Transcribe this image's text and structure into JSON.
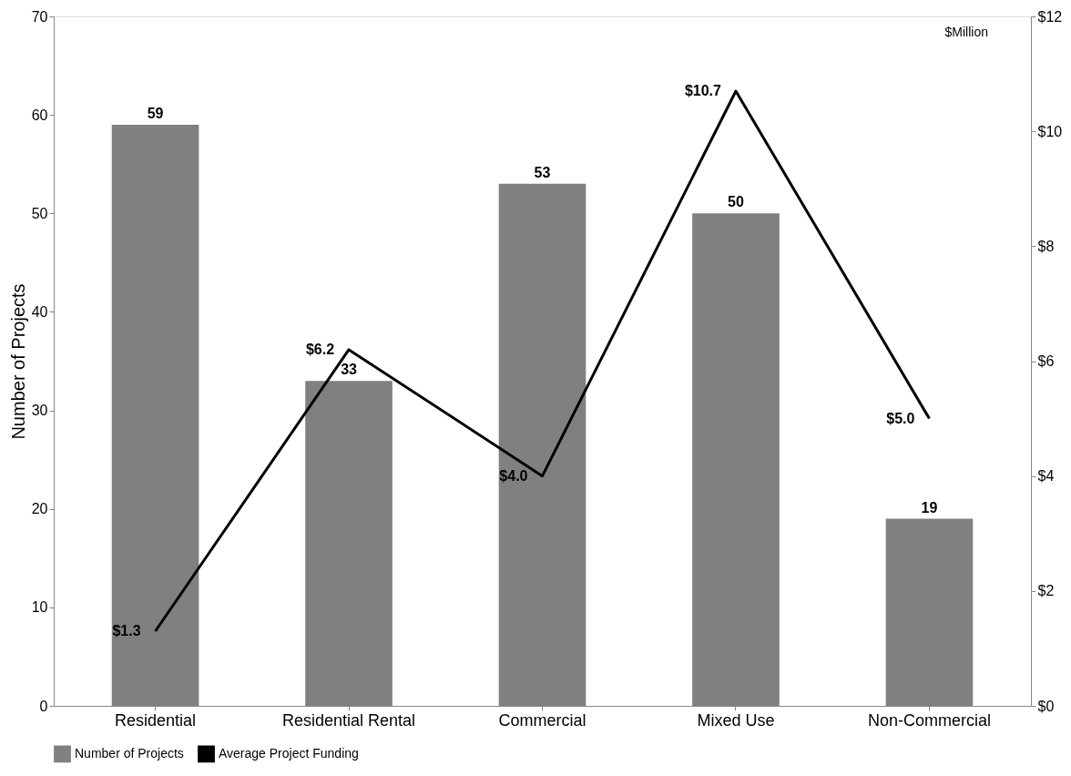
{
  "chart_data": {
    "type": "bar",
    "categories": [
      "Residential",
      "Residential Rental",
      "Commercial",
      "Mixed Use",
      "Non-Commercial"
    ],
    "series": [
      {
        "name": "Number of Projects",
        "color": "#808080",
        "values": [
          59,
          33,
          53,
          50,
          19
        ]
      },
      {
        "name": "Average Project Funding",
        "type": "line",
        "axis": "y2",
        "color": "#000000",
        "values": [
          1.3,
          6.2,
          4.0,
          10.7,
          5.0
        ],
        "value_labels": [
          "$1.3",
          "$6.2",
          "$4.0",
          "$10.7",
          "$5.0"
        ]
      }
    ],
    "ylabel": "Number of Projects",
    "ylim": [
      0,
      70
    ],
    "yticks": [
      0,
      10,
      20,
      30,
      40,
      50,
      60,
      70
    ],
    "y2lim": [
      0,
      12
    ],
    "y2ticks": [
      {
        "value": 0,
        "label": "$0"
      },
      {
        "value": 2,
        "label": "$2"
      },
      {
        "value": 4,
        "label": "$4"
      },
      {
        "value": 6,
        "label": "$6"
      },
      {
        "value": 8,
        "label": "$8"
      },
      {
        "value": 10,
        "label": "$10"
      },
      {
        "value": 12,
        "label": "$12"
      }
    ],
    "annotations": [
      "$Million"
    ],
    "data_labels": true,
    "grid": false,
    "legend": "bottom",
    "marker": "none",
    "line_style": "solid"
  }
}
